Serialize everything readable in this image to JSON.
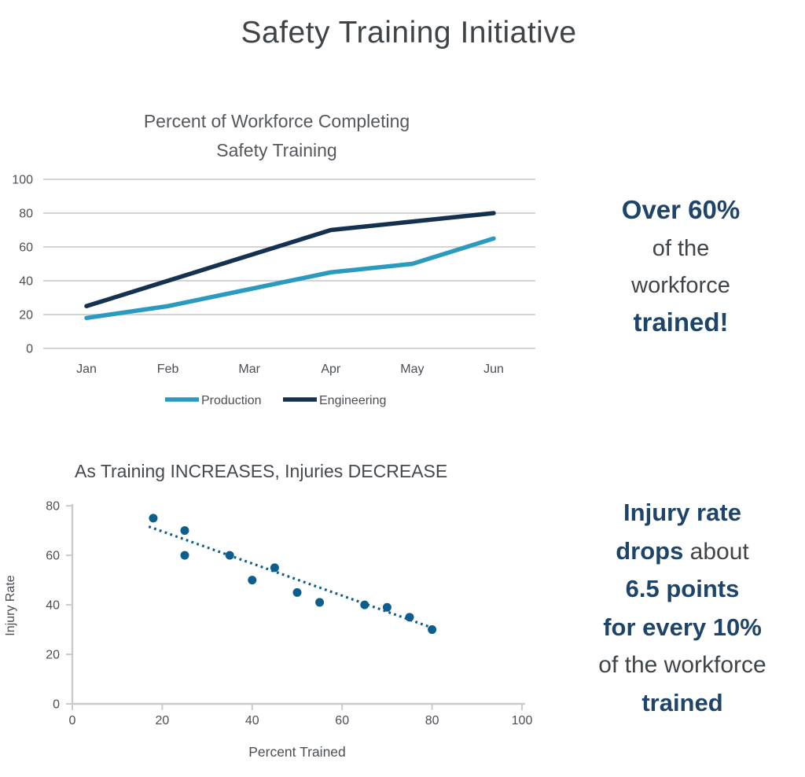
{
  "page_title": "Safety Training Initiative",
  "colors": {
    "title_gray": "#3F4449",
    "tick_gray": "#4A4F55",
    "gridline": "#D4D4D4",
    "axis": "#CBCBCB",
    "emphasis_blue": "#1E4569",
    "production_blue": "#2B9ABF",
    "engineering_navy": "#14314F",
    "scatter_blue": "#0D5E8D"
  },
  "chart_data": [
    {
      "type": "line",
      "title": "Percent of Workforce Completing Safety Training",
      "title_lines": [
        "Percent of Workforce Completing",
        "Safety Training"
      ],
      "categories": [
        "Jan",
        "Feb",
        "Mar",
        "Apr",
        "May",
        "Jun"
      ],
      "series": [
        {
          "name": "Production",
          "color": "#2B9ABF",
          "values": [
            18,
            25,
            35,
            45,
            50,
            65
          ]
        },
        {
          "name": "Engineering",
          "color": "#14314F",
          "values": [
            25,
            40,
            55,
            70,
            75,
            80
          ]
        }
      ],
      "ylim": [
        0,
        100
      ],
      "yticks": [
        0,
        20,
        40,
        60,
        80,
        100
      ],
      "grid": "horizontal",
      "legend_position": "bottom"
    },
    {
      "type": "scatter",
      "title": "As Training INCREASES, Injuries DECREASE",
      "xlabel": "Percent Trained",
      "ylabel": "Injury Rate",
      "xlim": [
        0,
        100
      ],
      "ylim": [
        0,
        80
      ],
      "xticks": [
        0,
        20,
        40,
        60,
        80,
        100
      ],
      "yticks": [
        0,
        20,
        40,
        60,
        80
      ],
      "grid": "off",
      "point_color": "#0D5E8D",
      "points": [
        [
          18,
          75
        ],
        [
          25,
          70
        ],
        [
          25,
          60
        ],
        [
          35,
          60
        ],
        [
          40,
          50
        ],
        [
          45,
          55
        ],
        [
          50,
          45
        ],
        [
          55,
          41
        ],
        [
          65,
          40
        ],
        [
          70,
          39
        ],
        [
          75,
          35
        ],
        [
          80,
          30
        ]
      ],
      "trendline": {
        "style": "dotted",
        "color": "#0D5E8D",
        "x1": 17,
        "y1": 71.6,
        "x2": 81,
        "y2": 30.1
      }
    }
  ],
  "callouts": {
    "training": {
      "lines": [
        [
          {
            "t": "Over 60%",
            "e": true
          }
        ],
        [
          {
            "t": "of the",
            "e": false
          }
        ],
        [
          {
            "t": "workforce",
            "e": false
          }
        ],
        [
          {
            "t": "trained!",
            "e": true
          }
        ]
      ]
    },
    "injury": {
      "lines": [
        [
          {
            "t": "Injury rate",
            "e": true
          }
        ],
        [
          {
            "t": "drops",
            "e": true
          },
          {
            "t": " about",
            "e": false
          }
        ],
        [
          {
            "t": "6.5 points",
            "e": true
          }
        ],
        [
          {
            "t": "for every 10%",
            "e": true
          }
        ],
        [
          {
            "t": "of the workforce",
            "e": false
          }
        ],
        [
          {
            "t": "trained",
            "e": true
          }
        ]
      ]
    }
  }
}
